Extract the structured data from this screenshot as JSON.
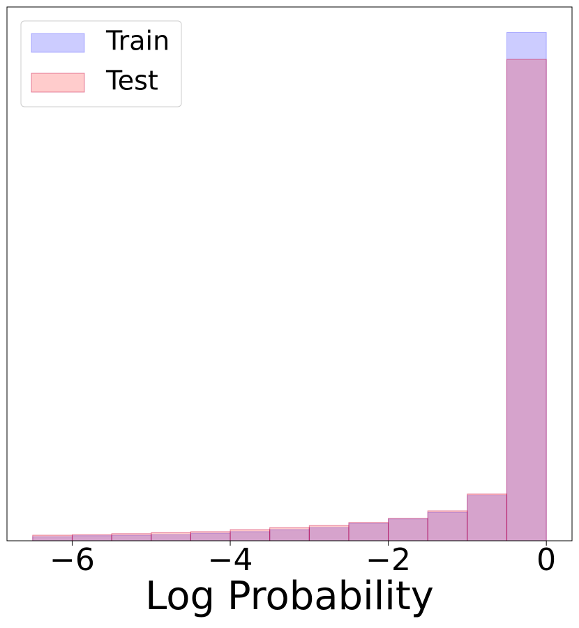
{
  "chart_data": {
    "type": "histogram",
    "x_label": "Log Probability",
    "bins": [
      -6.5,
      -6,
      -5.5,
      -5,
      -4.5,
      -4,
      -3.5,
      -3,
      -2.5,
      -2,
      -1.5,
      -1,
      -0.5,
      0
    ],
    "series": [
      {
        "name": "Train",
        "color": "rgba(0,0,255,0.2)",
        "edgecolor": "rgba(0,0,255,0.25)",
        "values": [
          0.8,
          1.0,
          1.1,
          1.2,
          1.5,
          1.8,
          2.2,
          2.6,
          3.4,
          4.3,
          5.6,
          8.9,
          100
        ]
      },
      {
        "name": "Test",
        "color": "rgba(255,0,0,0.2)",
        "edgecolor": "rgba(200,0,60,0.45)",
        "values": [
          1.1,
          1.2,
          1.4,
          1.6,
          1.8,
          2.2,
          2.6,
          3.0,
          3.6,
          4.4,
          5.9,
          9.2,
          94.7
        ]
      }
    ],
    "xlim": [
      -6.825,
      0.325
    ],
    "ylim": [
      0,
      105
    ],
    "xticks": [
      {
        "value": -6,
        "label": "−6"
      },
      {
        "value": -4,
        "label": "−4"
      },
      {
        "value": -2,
        "label": "−2"
      },
      0
    ],
    "legend": "upper left"
  }
}
